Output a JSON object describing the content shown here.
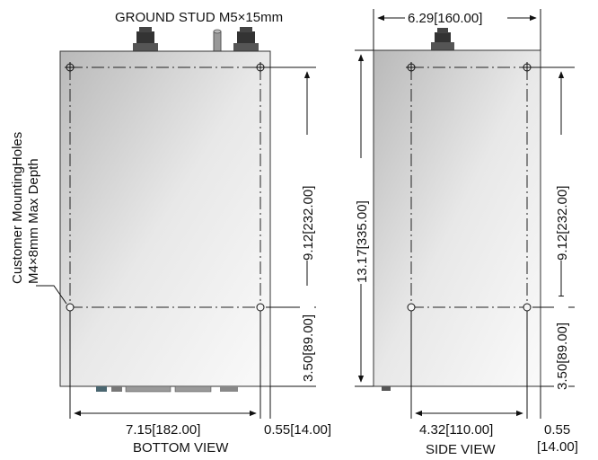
{
  "labels": {
    "ground_stud": "GROUND STUD M5×15mm",
    "mounting_holes_line1": "Customer MountingHoles",
    "mounting_holes_line2": "M4×8mm Max Depth",
    "bottom_view": "BOTTOM VIEW",
    "side_view": "SIDE VIEW"
  },
  "bottom_view": {
    "dim_vertical_holes": "9.12[232.00]",
    "dim_vertical_bottom": "3.50[89.00]",
    "dim_width_holes": "7.15[182.00]",
    "dim_edge_offset": "0.55[14.00]"
  },
  "side_view": {
    "dim_width_top": "6.29[160.00]",
    "dim_height_total": "13.17[335.00]",
    "dim_vertical_holes": "9.12[232.00]",
    "dim_vertical_bottom": "3.50[89.00]",
    "dim_width_holes": "4.32[110.00]",
    "dim_edge_offset_line1": "0.55",
    "dim_edge_offset_line2": "[14.00]"
  },
  "colors": {
    "panel_light": "#f8f8f8",
    "panel_dark": "#b9b9b9",
    "line": "#111111"
  }
}
